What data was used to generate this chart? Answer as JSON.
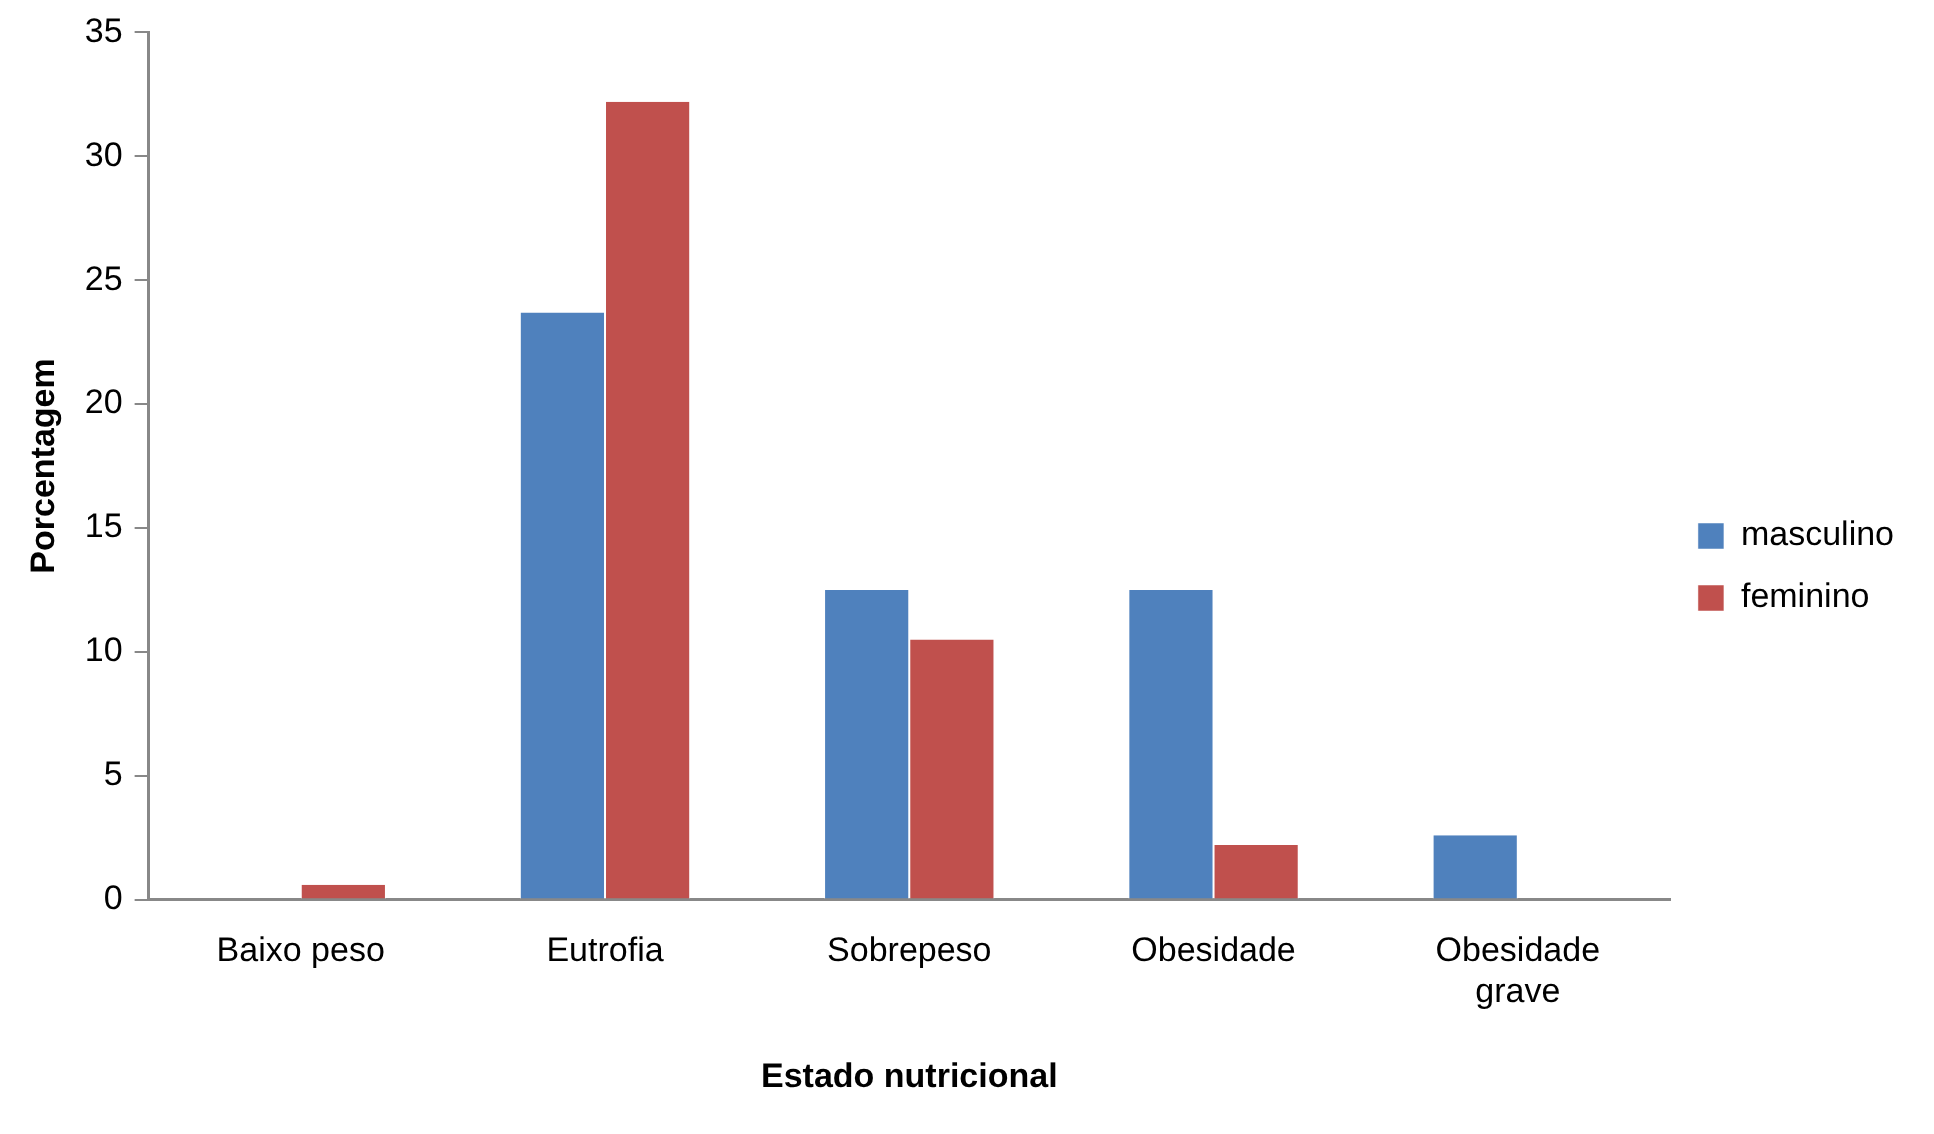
{
  "chart_data": {
    "type": "bar",
    "xlabel": "Estado nutricional",
    "ylabel": "Porcentagem",
    "categories": [
      "Baixo peso",
      "Eutrofia",
      "Sobrepeso",
      "Obesidade",
      "Obesidade grave"
    ],
    "series": [
      {
        "name": "masculino",
        "color": "#4f81bd",
        "values": [
          0,
          23.7,
          12.5,
          12.5,
          2.6
        ]
      },
      {
        "name": "feminino",
        "color": "#c0504d",
        "values": [
          0.6,
          32.2,
          10.5,
          2.2,
          0
        ]
      }
    ],
    "ylim": [
      0,
      35
    ],
    "yticks": [
      0,
      5,
      10,
      15,
      20,
      25,
      30,
      35
    ],
    "grid": false,
    "legend": "right"
  }
}
